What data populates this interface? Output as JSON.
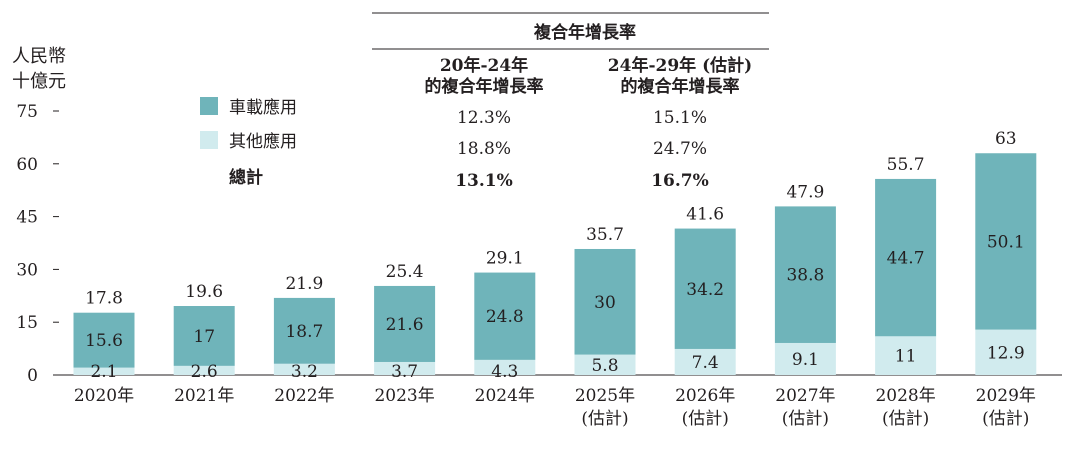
{
  "chart_data": {
    "type": "bar",
    "stacked": true,
    "ylabel_lines": [
      "人民幣",
      "十億元"
    ],
    "ylim": [
      0,
      75
    ],
    "yticks": [
      0,
      15,
      30,
      45,
      60,
      75
    ],
    "categories": [
      [
        "2020年"
      ],
      [
        "2021年"
      ],
      [
        "2022年"
      ],
      [
        "2023年"
      ],
      [
        "2024年"
      ],
      [
        "2025年",
        "(估計)"
      ],
      [
        "2026年",
        "(估計)"
      ],
      [
        "2027年",
        "(估計)"
      ],
      [
        "2028年",
        "(估計)"
      ],
      [
        "2029年",
        "(估計)"
      ]
    ],
    "series": [
      {
        "name": "其他應用",
        "color": "#d1ebee",
        "values": [
          2.1,
          2.6,
          3.2,
          3.7,
          4.3,
          5.8,
          7.4,
          9.1,
          11.0,
          12.9
        ]
      },
      {
        "name": "車載應用",
        "color": "#6fb4ba",
        "values": [
          15.6,
          17.0,
          18.7,
          21.6,
          24.8,
          30.0,
          34.2,
          38.8,
          44.7,
          50.1
        ]
      }
    ],
    "totals": [
      17.8,
      19.6,
      21.9,
      25.4,
      29.1,
      35.7,
      41.6,
      47.9,
      55.7,
      63.0
    ],
    "legend": [
      {
        "label": "車載應用",
        "color": "#6fb4ba"
      },
      {
        "label": "其他應用",
        "color": "#d1ebee"
      },
      {
        "label": "總計",
        "color": null
      }
    ],
    "cagr_table": {
      "title": "複合年增長率",
      "columns": [
        [
          "20年-24年",
          "的複合年增長率"
        ],
        [
          "24年-29年 (估計)",
          "的複合年增長率"
        ]
      ],
      "rows": [
        [
          "12.3%",
          "15.1%"
        ],
        [
          "18.8%",
          "24.7%"
        ],
        [
          "13.1%",
          "16.7%"
        ]
      ]
    }
  }
}
